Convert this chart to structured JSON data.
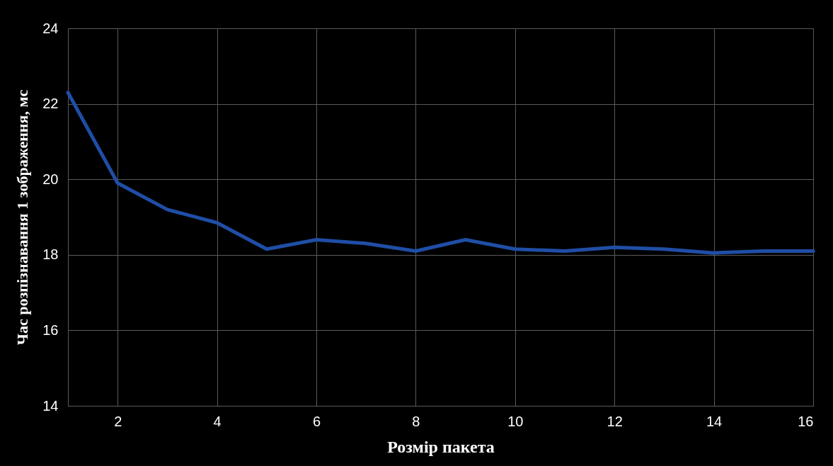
{
  "chart_data": {
    "type": "line",
    "xlabel": "Розмір пакета",
    "ylabel": "Час розпізнавання 1 зображення, мс",
    "x": [
      1,
      2,
      3,
      4,
      5,
      6,
      7,
      8,
      9,
      10,
      11,
      12,
      13,
      14,
      15,
      16
    ],
    "series": [
      {
        "color": "#1f4ea6",
        "values": [
          22.3,
          19.9,
          19.2,
          18.85,
          18.15,
          18.4,
          18.3,
          18.1,
          18.4,
          18.15,
          18.1,
          18.2,
          18.15,
          18.05,
          18.1,
          18.1
        ]
      }
    ],
    "xlim": [
      1,
      16
    ],
    "xticks": [
      2,
      4,
      6,
      8,
      10,
      12,
      14,
      16
    ],
    "ylim": [
      14,
      24
    ],
    "yticks": [
      14,
      16,
      18,
      20,
      22,
      24
    ],
    "grid": true,
    "marker": "none",
    "line_style": "solid"
  }
}
